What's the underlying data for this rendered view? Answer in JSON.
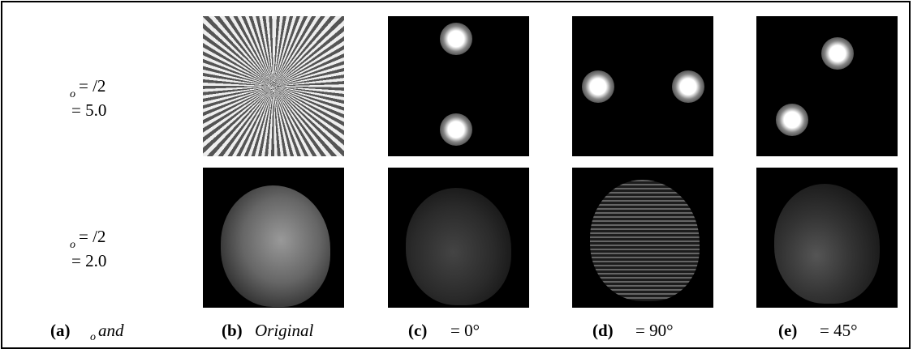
{
  "rows": [
    {
      "omega_sub": "o",
      "omega_text": "= /2",
      "sigma_text": "= 5.0"
    },
    {
      "omega_sub": "o",
      "omega_text": "= /2",
      "sigma_text": "= 2.0"
    }
  ],
  "captions": [
    {
      "letter": "(a)",
      "sub": "o",
      "text": "and"
    },
    {
      "letter": "(b)",
      "text": "Original"
    },
    {
      "letter": "(c)",
      "text": "= 0°"
    },
    {
      "letter": "(d)",
      "text": "= 90°"
    },
    {
      "letter": "(e)",
      "text": "= 45°"
    }
  ]
}
